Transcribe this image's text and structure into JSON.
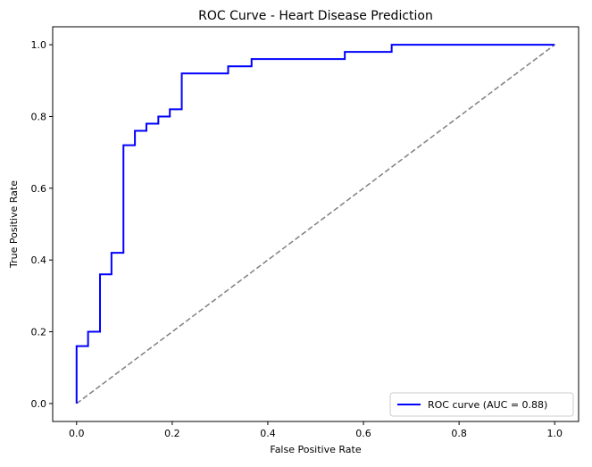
{
  "chart_data": {
    "type": "line",
    "title": "ROC Curve - Heart Disease Prediction",
    "xlabel": "False Positive Rate",
    "ylabel": "True Positive Rate",
    "xlim": [
      -0.05,
      1.05
    ],
    "ylim": [
      -0.05,
      1.05
    ],
    "x_ticks": [
      "0.0",
      "0.2",
      "0.4",
      "0.6",
      "0.8",
      "1.0"
    ],
    "y_ticks": [
      "0.0",
      "0.2",
      "0.4",
      "0.6",
      "0.8",
      "1.0"
    ],
    "grid": false,
    "legend_position": "lower-right",
    "series": [
      {
        "name": "ROC curve (AUC = 0.88)",
        "color": "#0000ff",
        "style": "solid",
        "x": [
          0.0,
          0.0,
          0.024,
          0.024,
          0.049,
          0.049,
          0.073,
          0.073,
          0.098,
          0.098,
          0.122,
          0.122,
          0.146,
          0.146,
          0.171,
          0.171,
          0.195,
          0.195,
          0.22,
          0.22,
          0.317,
          0.317,
          0.366,
          0.366,
          0.561,
          0.561,
          0.659,
          0.659,
          1.0
        ],
        "y": [
          0.0,
          0.16,
          0.16,
          0.2,
          0.2,
          0.36,
          0.36,
          0.42,
          0.42,
          0.72,
          0.72,
          0.76,
          0.76,
          0.78,
          0.78,
          0.8,
          0.8,
          0.82,
          0.82,
          0.92,
          0.92,
          0.94,
          0.94,
          0.96,
          0.96,
          0.98,
          0.98,
          1.0,
          1.0
        ]
      },
      {
        "name": "",
        "color": "#808080",
        "style": "dashed",
        "x": [
          0.0,
          1.0
        ],
        "y": [
          0.0,
          1.0
        ]
      }
    ]
  }
}
